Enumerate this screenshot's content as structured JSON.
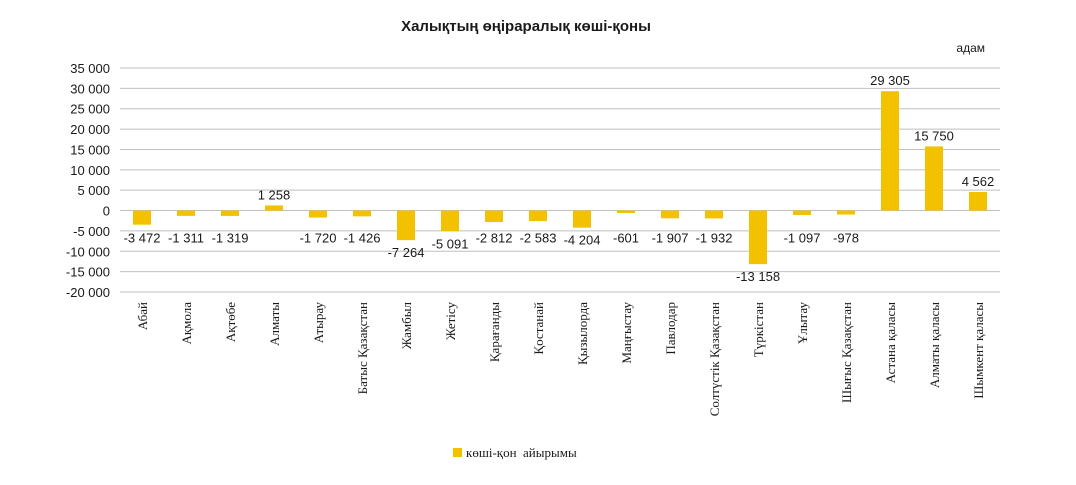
{
  "chart_data": {
    "type": "bar",
    "title": "Халықтың өңіраралық көші-қоны",
    "unit_label": "адам",
    "categories": [
      "Абай",
      "Ақмола",
      "Ақтөбе",
      "Алматы",
      "Атырау",
      "Батыс Қазақстан",
      "Жамбыл",
      "Жетісу",
      "Қарағанды",
      "Қостанай",
      "Қызылорда",
      "Маңғыстау",
      "Павлодар",
      "Солтүстік Қазақстан",
      "Түркістан",
      "Ұлытау",
      "Шығыс  Қазақстан",
      "Астана қаласы",
      "Алматы қаласы",
      "Шымкент қаласы"
    ],
    "series": [
      {
        "name": "көші-қон  айырымы",
        "values": [
          -3472,
          -1311,
          -1319,
          1258,
          -1720,
          -1426,
          -7264,
          -5091,
          -2812,
          -2583,
          -4204,
          -601,
          -1907,
          -1932,
          -13158,
          -1097,
          -978,
          29305,
          15750,
          4562
        ],
        "labels": [
          "-3 472",
          "-1 311",
          "-1 319",
          "1 258",
          "-1 720",
          "-1 426",
          "-7 264",
          "-5 091",
          "-2 812",
          "-2 583",
          "-4 204",
          "-601",
          "-1 907",
          "-1 932",
          "-13 158",
          "-1 097",
          "-978",
          "29 305",
          "15 750",
          "4 562"
        ],
        "color": "#f2c200"
      }
    ],
    "ylim": [
      -20000,
      35000
    ],
    "yticks": [
      35000,
      30000,
      25000,
      20000,
      15000,
      10000,
      5000,
      0,
      -5000,
      -10000,
      -15000,
      -20000
    ],
    "ytick_labels": [
      "35 000",
      "30 000",
      "25 000",
      "20 000",
      "15 000",
      "10 000",
      "5 000",
      "0",
      "-5 000",
      "-10 000",
      "-15 000",
      "-20 000"
    ],
    "grid": true,
    "legend_position": "bottom"
  }
}
